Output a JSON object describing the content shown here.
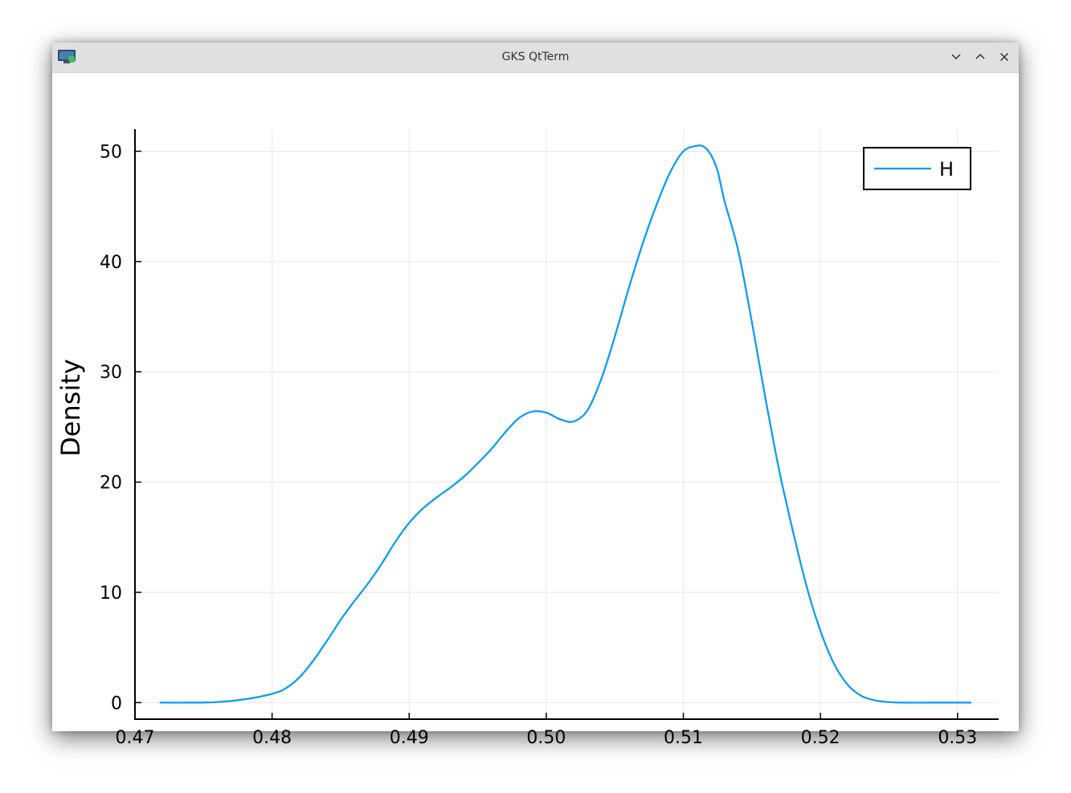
{
  "window": {
    "title": "GKS QtTerm",
    "icons": {
      "app": "gks-app-icon",
      "minimize": "chevron-down-icon",
      "maximize": "chevron-up-icon",
      "close": "close-icon"
    }
  },
  "colors": {
    "series": "#009af9",
    "grid": "#e6e6e6",
    "axis": "#000000",
    "titlebar": "#dfe0e2"
  },
  "chart_data": {
    "type": "line",
    "title": "",
    "xlabel": "",
    "ylabel": "Density",
    "xlim": [
      0.47,
      0.533
    ],
    "ylim": [
      -1.5,
      52
    ],
    "xticks": [
      0.47,
      0.48,
      0.49,
      0.5,
      0.51,
      0.52,
      0.53
    ],
    "xtick_labels": [
      "0.47",
      "0.48",
      "0.49",
      "0.50",
      "0.51",
      "0.52",
      "0.53"
    ],
    "yticks": [
      0,
      10,
      20,
      30,
      40,
      50
    ],
    "ytick_labels": [
      "0",
      "10",
      "20",
      "30",
      "40",
      "50"
    ],
    "grid": true,
    "legend": {
      "position": "top-right",
      "entries": [
        "H"
      ]
    },
    "series": [
      {
        "name": "H",
        "x": [
          0.4718,
          0.474,
          0.476,
          0.478,
          0.48,
          0.481,
          0.482,
          0.483,
          0.484,
          0.485,
          0.486,
          0.487,
          0.488,
          0.489,
          0.49,
          0.491,
          0.492,
          0.493,
          0.494,
          0.495,
          0.496,
          0.497,
          0.498,
          0.499,
          0.5,
          0.501,
          0.502,
          0.503,
          0.504,
          0.505,
          0.506,
          0.507,
          0.508,
          0.509,
          0.51,
          0.511,
          0.5115,
          0.512,
          0.5125,
          0.513,
          0.514,
          0.515,
          0.516,
          0.517,
          0.518,
          0.519,
          0.52,
          0.521,
          0.522,
          0.523,
          0.524,
          0.525,
          0.526,
          0.528,
          0.531
        ],
        "y": [
          0.0,
          0.0,
          0.05,
          0.3,
          0.8,
          1.3,
          2.3,
          3.8,
          5.6,
          7.5,
          9.2,
          10.8,
          12.6,
          14.6,
          16.3,
          17.6,
          18.6,
          19.5,
          20.5,
          21.7,
          23.0,
          24.5,
          25.8,
          26.4,
          26.3,
          25.7,
          25.5,
          26.5,
          29.3,
          33.2,
          37.5,
          41.5,
          45.0,
          48.0,
          50.0,
          50.5,
          50.4,
          49.7,
          48.2,
          45.5,
          41.0,
          34.5,
          27.5,
          21.0,
          15.5,
          10.5,
          6.5,
          3.5,
          1.6,
          0.6,
          0.2,
          0.05,
          0.0,
          0.0,
          0.0
        ]
      }
    ]
  }
}
